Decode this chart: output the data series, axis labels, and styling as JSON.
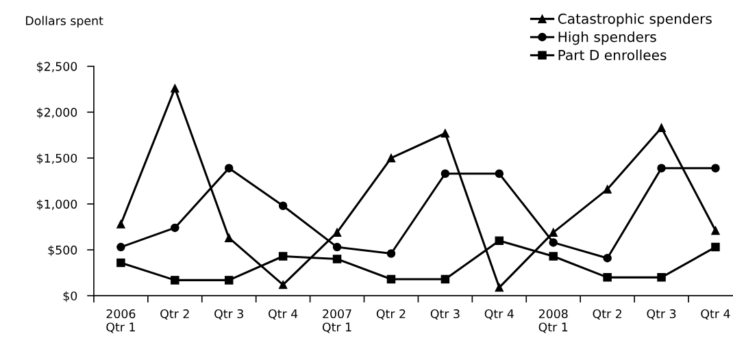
{
  "chart_data": {
    "type": "line",
    "ylabel": "Dollars spent",
    "categories": [
      "2006\nQtr 1",
      "Qtr 2",
      "Qtr 3",
      "Qtr 4",
      "2007\nQtr 1",
      "Qtr 2",
      "Qtr 3",
      "Qtr 4",
      "2008\nQtr 1",
      "Qtr 2",
      "Qtr 3",
      "Qtr 4"
    ],
    "series": [
      {
        "name": "Catastrophic spenders",
        "color": "#000000",
        "marker": "triangle",
        "values": [
          780,
          2260,
          630,
          120,
          690,
          1500,
          1770,
          90,
          690,
          1160,
          1830,
          710
        ]
      },
      {
        "name": "High spenders",
        "color": "#000000",
        "marker": "circle",
        "values": [
          530,
          740,
          1390,
          980,
          530,
          460,
          1330,
          1330,
          580,
          410,
          1390,
          1390
        ]
      },
      {
        "name": "Part D enrollees",
        "color": "#000000",
        "marker": "square",
        "values": [
          360,
          170,
          170,
          430,
          400,
          180,
          180,
          600,
          430,
          200,
          200,
          530
        ]
      }
    ],
    "ylim": [
      0,
      2500
    ],
    "yticks": [
      {
        "value": 0,
        "label": "$0"
      },
      {
        "value": 500,
        "label": "$500"
      },
      {
        "value": 1000,
        "label": "$1,000"
      },
      {
        "value": 1500,
        "label": "$1,500"
      },
      {
        "value": 2000,
        "label": "$2,000"
      },
      {
        "value": 2500,
        "label": "$2,500"
      }
    ],
    "grid": false,
    "legend": "top right",
    "line_style": "solid"
  }
}
